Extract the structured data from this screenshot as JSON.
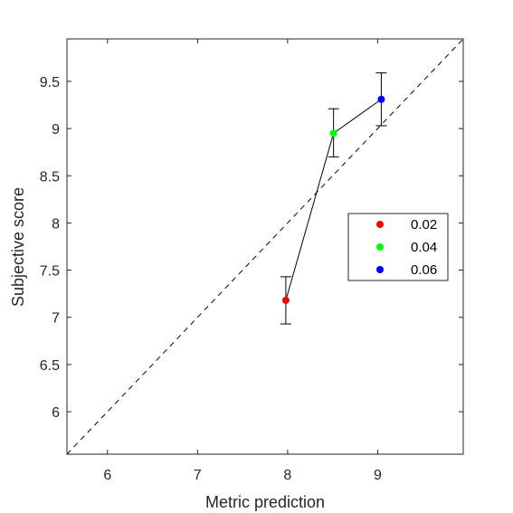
{
  "chart_data": {
    "type": "scatter",
    "xlabel": "Metric prediction",
    "ylabel": "Subjective score",
    "xlim": [
      5.55,
      9.95
    ],
    "ylim": [
      5.55,
      9.95
    ],
    "xticks": [
      6,
      7,
      8,
      9
    ],
    "yticks": [
      6,
      6.5,
      7,
      7.5,
      8,
      8.5,
      9,
      9.5
    ],
    "xtick_labels": [
      "6",
      "7",
      "8",
      "9"
    ],
    "ytick_labels": [
      "6",
      "6.5",
      "7",
      "7.5",
      "8",
      "8.5",
      "9",
      "9.5"
    ],
    "grid": false,
    "legend_position": "right",
    "reference_line": "dashed diagonal y = x",
    "connecting_line": true,
    "series": [
      {
        "name": "0.02",
        "color": "#ff0000",
        "x": 7.98,
        "y": 7.18,
        "yerr_low": 6.93,
        "yerr_high": 7.43
      },
      {
        "name": "0.04",
        "color": "#00ff00",
        "x": 8.51,
        "y": 8.95,
        "yerr_low": 8.7,
        "yerr_high": 9.21
      },
      {
        "name": "0.06",
        "color": "#0000ff",
        "x": 9.04,
        "y": 9.31,
        "yerr_low": 9.03,
        "yerr_high": 9.59
      }
    ]
  }
}
